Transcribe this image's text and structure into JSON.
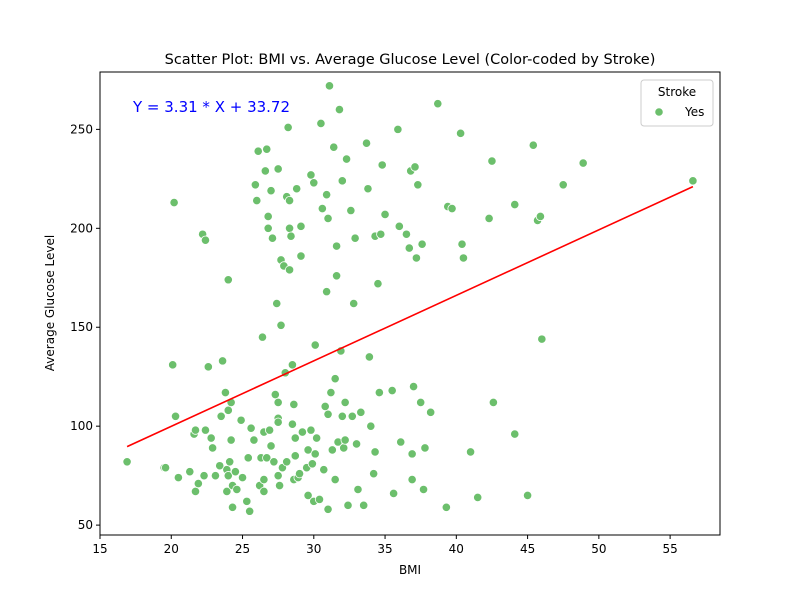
{
  "chart_data": {
    "type": "scatter",
    "title": "Scatter Plot: BMI vs. Average Glucose Level (Color-coded by Stroke)",
    "xlabel": "BMI",
    "ylabel": "Average Glucose Level",
    "xlim": [
      15,
      58.5
    ],
    "ylim": [
      45,
      279
    ],
    "xticks": [
      15,
      20,
      25,
      30,
      35,
      40,
      45,
      50,
      55
    ],
    "yticks": [
      50,
      100,
      150,
      200,
      250
    ],
    "grid": false,
    "legend": {
      "title": "Stroke",
      "position": "top-right",
      "entries": [
        "Yes"
      ]
    },
    "annotation": {
      "text": "Y = 3.31 * X + 33.72",
      "color": "#0000ff"
    },
    "point_color": "#6cbf6c",
    "regression": {
      "color": "#ff0000",
      "slope": 3.31,
      "intercept": 33.72,
      "x_range": [
        16.9,
        56.6
      ]
    },
    "series": [
      {
        "name": "Yes",
        "points": [
          [
            16.9,
            82
          ],
          [
            19.5,
            79
          ],
          [
            19.6,
            79
          ],
          [
            20.1,
            131
          ],
          [
            20.2,
            213
          ],
          [
            20.3,
            105
          ],
          [
            20.5,
            74
          ],
          [
            21.3,
            77
          ],
          [
            21.6,
            96
          ],
          [
            21.7,
            98
          ],
          [
            21.7,
            67
          ],
          [
            21.9,
            71
          ],
          [
            22.2,
            197
          ],
          [
            22.3,
            75
          ],
          [
            22.4,
            194
          ],
          [
            22.4,
            98
          ],
          [
            22.6,
            130
          ],
          [
            22.8,
            94
          ],
          [
            22.9,
            89
          ],
          [
            23.1,
            75
          ],
          [
            23.4,
            80
          ],
          [
            23.5,
            105
          ],
          [
            23.6,
            133
          ],
          [
            23.8,
            117
          ],
          [
            23.9,
            78
          ],
          [
            23.9,
            67
          ],
          [
            24,
            174
          ],
          [
            24,
            108
          ],
          [
            24,
            75
          ],
          [
            24.1,
            82
          ],
          [
            24.2,
            112
          ],
          [
            24.2,
            93
          ],
          [
            24.3,
            70
          ],
          [
            24.3,
            59
          ],
          [
            24.5,
            77
          ],
          [
            24.6,
            68
          ],
          [
            24.9,
            103
          ],
          [
            25,
            74
          ],
          [
            25.3,
            62
          ],
          [
            25.4,
            84
          ],
          [
            25.5,
            57
          ],
          [
            25.6,
            99
          ],
          [
            25.8,
            93
          ],
          [
            25.9,
            222
          ],
          [
            26,
            214
          ],
          [
            26.1,
            239
          ],
          [
            26.2,
            70
          ],
          [
            26.3,
            84
          ],
          [
            26.4,
            145
          ],
          [
            26.5,
            73
          ],
          [
            26.5,
            97
          ],
          [
            26.5,
            67
          ],
          [
            26.6,
            229
          ],
          [
            26.7,
            240
          ],
          [
            26.7,
            84
          ],
          [
            26.8,
            200
          ],
          [
            26.8,
            206
          ],
          [
            26.9,
            98
          ],
          [
            27,
            219
          ],
          [
            27,
            90
          ],
          [
            27.1,
            195
          ],
          [
            27.2,
            82
          ],
          [
            27.3,
            116
          ],
          [
            27.4,
            162
          ],
          [
            27.5,
            230
          ],
          [
            27.5,
            112
          ],
          [
            27.5,
            104
          ],
          [
            27.5,
            102
          ],
          [
            27.5,
            75
          ],
          [
            27.6,
            70
          ],
          [
            27.7,
            151
          ],
          [
            27.7,
            184
          ],
          [
            27.8,
            79
          ],
          [
            27.9,
            181
          ],
          [
            28,
            127
          ],
          [
            28.1,
            216
          ],
          [
            28.1,
            82
          ],
          [
            28.2,
            251
          ],
          [
            28.3,
            200
          ],
          [
            28.3,
            214
          ],
          [
            28.3,
            179
          ],
          [
            28.4,
            196
          ],
          [
            28.5,
            131
          ],
          [
            28.5,
            101
          ],
          [
            28.6,
            111
          ],
          [
            28.6,
            73
          ],
          [
            28.7,
            94
          ],
          [
            28.7,
            85
          ],
          [
            28.8,
            220
          ],
          [
            28.9,
            74
          ],
          [
            29,
            76
          ],
          [
            29.1,
            201
          ],
          [
            29.1,
            186
          ],
          [
            29.2,
            97
          ],
          [
            29.5,
            79
          ],
          [
            29.6,
            65
          ],
          [
            29.6,
            88
          ],
          [
            29.8,
            227
          ],
          [
            29.8,
            98
          ],
          [
            29.9,
            81
          ],
          [
            30,
            223
          ],
          [
            30,
            62
          ],
          [
            30.1,
            141
          ],
          [
            30.1,
            86
          ],
          [
            30.2,
            94
          ],
          [
            30.4,
            63
          ],
          [
            30.5,
            253
          ],
          [
            30.6,
            210
          ],
          [
            30.7,
            78
          ],
          [
            30.8,
            110
          ],
          [
            30.9,
            168
          ],
          [
            30.9,
            217
          ],
          [
            31,
            58
          ],
          [
            31,
            205
          ],
          [
            31,
            106
          ],
          [
            31.1,
            272
          ],
          [
            31.2,
            117
          ],
          [
            31.3,
            88
          ],
          [
            31.4,
            241
          ],
          [
            31.5,
            124
          ],
          [
            31.5,
            73
          ],
          [
            31.6,
            191
          ],
          [
            31.6,
            176
          ],
          [
            31.7,
            92
          ],
          [
            31.8,
            260
          ],
          [
            31.9,
            138
          ],
          [
            32,
            224
          ],
          [
            32,
            105
          ],
          [
            32.1,
            89
          ],
          [
            32.2,
            112
          ],
          [
            32.2,
            93
          ],
          [
            32.3,
            235
          ],
          [
            32.4,
            60
          ],
          [
            32.6,
            209
          ],
          [
            32.7,
            105
          ],
          [
            32.8,
            162
          ],
          [
            32.9,
            195
          ],
          [
            33,
            91
          ],
          [
            33.1,
            68
          ],
          [
            33.3,
            107
          ],
          [
            33.5,
            60
          ],
          [
            33.7,
            243
          ],
          [
            33.8,
            220
          ],
          [
            33.9,
            135
          ],
          [
            34,
            100
          ],
          [
            34.2,
            76
          ],
          [
            34.3,
            87
          ],
          [
            34.3,
            196
          ],
          [
            34.5,
            172
          ],
          [
            34.6,
            117
          ],
          [
            34.7,
            197
          ],
          [
            34.8,
            232
          ],
          [
            35,
            207
          ],
          [
            35.5,
            118
          ],
          [
            35.6,
            66
          ],
          [
            35.9,
            250
          ],
          [
            36,
            201
          ],
          [
            36.1,
            92
          ],
          [
            36.5,
            197
          ],
          [
            36.7,
            190
          ],
          [
            36.8,
            229
          ],
          [
            36.9,
            86
          ],
          [
            36.9,
            73
          ],
          [
            37,
            120
          ],
          [
            37.1,
            231
          ],
          [
            37.2,
            185
          ],
          [
            37.3,
            222
          ],
          [
            37.5,
            112
          ],
          [
            37.6,
            192
          ],
          [
            37.7,
            68
          ],
          [
            37.8,
            89
          ],
          [
            38.2,
            107
          ],
          [
            38.7,
            263
          ],
          [
            39.3,
            59
          ],
          [
            39.4,
            211
          ],
          [
            39.7,
            210
          ],
          [
            40.3,
            248
          ],
          [
            40.4,
            192
          ],
          [
            40.5,
            185
          ],
          [
            41.0,
            87
          ],
          [
            41.5,
            64
          ],
          [
            42.3,
            205
          ],
          [
            42.5,
            234
          ],
          [
            42.6,
            112
          ],
          [
            44.1,
            212
          ],
          [
            44.1,
            96
          ],
          [
            45,
            65
          ],
          [
            45.4,
            242
          ],
          [
            45.7,
            204
          ],
          [
            45.9,
            206
          ],
          [
            46,
            144
          ],
          [
            47.5,
            222
          ],
          [
            48.9,
            233
          ],
          [
            56.6,
            224
          ]
        ]
      }
    ]
  }
}
